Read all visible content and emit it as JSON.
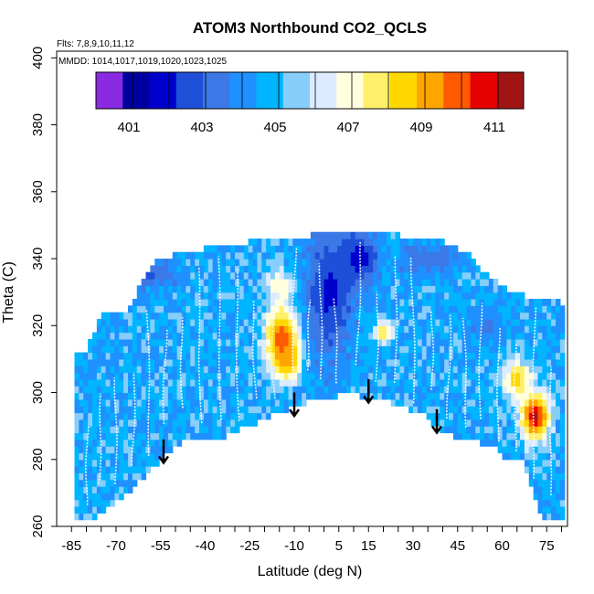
{
  "chart_data": {
    "type": "heatmap",
    "title": "ATOM3 Northbound CO2_QCLS",
    "subtitle_flights": "Flts: 7,8,9,10,11,12",
    "subtitle_dates": "MMDD: 1014,1017,1019,1020,1023,1025",
    "xlabel": "Latitude (deg N)",
    "ylabel": "Theta (C)",
    "xlim": [
      -90,
      82
    ],
    "ylim": [
      260,
      402
    ],
    "x_ticks": [
      -85,
      -70,
      -55,
      -40,
      -25,
      -10,
      5,
      15,
      30,
      45,
      60,
      75
    ],
    "x_ticks_minor_step": 5,
    "y_ticks": [
      260,
      280,
      300,
      320,
      340,
      360,
      380,
      400
    ],
    "colorbar": {
      "min": 400,
      "max": 411.7,
      "tick_labels": [
        401,
        403,
        405,
        407,
        409,
        411
      ],
      "colors": [
        "#8A2BE2",
        "#0000A0",
        "#0000CD",
        "#1E4FD8",
        "#3C78E6",
        "#1E90FF",
        "#00B4FF",
        "#87CEFA",
        "#DCEBFF",
        "#FFFFE0",
        "#FFF06A",
        "#FFD700",
        "#FFA500",
        "#FF5A00",
        "#E60000",
        "#A01414"
      ]
    },
    "coverage_envelope": {
      "bottom_theta": [
        [
          -84,
          262
        ],
        [
          -78,
          262
        ],
        [
          -66,
          270
        ],
        [
          -55,
          280
        ],
        [
          -46,
          287
        ],
        [
          -40,
          286
        ],
        [
          -36,
          286
        ],
        [
          -10,
          296
        ],
        [
          -2,
          298
        ],
        [
          10,
          300
        ],
        [
          15,
          297
        ],
        [
          20,
          298
        ],
        [
          34,
          293
        ],
        [
          38,
          290
        ],
        [
          45,
          286
        ],
        [
          52,
          285
        ],
        [
          57,
          285
        ],
        [
          60,
          280
        ],
        [
          67,
          280
        ],
        [
          72,
          266
        ],
        [
          74,
          262
        ],
        [
          79,
          262
        ]
      ],
      "top_theta": [
        [
          -84,
          312
        ],
        [
          -80,
          312
        ],
        [
          -75,
          322
        ],
        [
          -66,
          323
        ],
        [
          -62,
          331
        ],
        [
          -56,
          339
        ],
        [
          -45,
          341
        ],
        [
          -35,
          343
        ],
        [
          -25,
          344
        ],
        [
          -15,
          345
        ],
        [
          -5,
          346
        ],
        [
          5,
          347
        ],
        [
          15,
          347
        ],
        [
          25,
          346
        ],
        [
          30,
          345
        ],
        [
          40,
          344
        ],
        [
          48,
          341
        ],
        [
          55,
          334
        ],
        [
          62,
          330
        ],
        [
          70,
          327
        ],
        [
          80,
          326
        ]
      ]
    },
    "background_co2": 404.6,
    "co2_features": [
      {
        "lat": -14,
        "theta": 316,
        "co2": 410.3,
        "lat_radius": 7,
        "theta_radius": 12
      },
      {
        "lat": -12,
        "theta": 310,
        "co2": 409.5,
        "lat_radius": 5,
        "theta_radius": 7
      },
      {
        "lat": 71,
        "theta": 293,
        "co2": 411.0,
        "lat_radius": 6,
        "theta_radius": 9
      },
      {
        "lat": 65,
        "theta": 304,
        "co2": 408.5,
        "lat_radius": 6,
        "theta_radius": 7
      },
      {
        "lat": 20,
        "theta": 318,
        "co2": 408.3,
        "lat_radius": 4,
        "theta_radius": 4
      },
      {
        "lat": -15,
        "theta": 332,
        "co2": 407.5,
        "lat_radius": 6,
        "theta_radius": 6
      },
      {
        "lat": 2,
        "theta": 330,
        "co2": 402.0,
        "lat_radius": 10,
        "theta_radius": 25
      },
      {
        "lat": 12,
        "theta": 340,
        "co2": 401.8,
        "lat_radius": 8,
        "theta_radius": 10
      },
      {
        "lat": -62,
        "theta": 336,
        "co2": 402.5,
        "lat_radius": 14,
        "theta_radius": 6
      },
      {
        "lat": 35,
        "theta": 340,
        "co2": 403.0,
        "lat_radius": 12,
        "theta_radius": 6
      },
      {
        "lat": 55,
        "theta": 320,
        "co2": 403.5,
        "lat_radius": 8,
        "theta_radius": 6
      }
    ],
    "arrows": [
      {
        "lat": -54,
        "theta_top": 286,
        "theta_bottom": 279
      },
      {
        "lat": -10,
        "theta_top": 300,
        "theta_bottom": 293
      },
      {
        "lat": 15,
        "theta_top": 304,
        "theta_bottom": 297
      },
      {
        "lat": 38,
        "theta_top": 295,
        "theta_bottom": 288
      }
    ],
    "grid": false,
    "legend_position": "top"
  }
}
